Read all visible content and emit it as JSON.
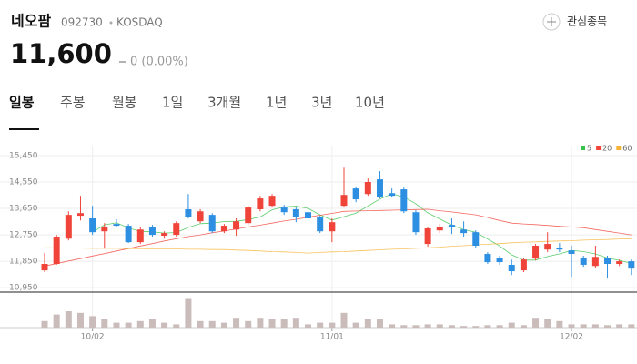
{
  "header": {
    "name": "네오팜",
    "code": "092730",
    "market": "KOSDAQ",
    "price": "11,600",
    "change": "0 (0.00%)",
    "watch": "관심종목"
  },
  "tabs": [
    "일봉",
    "주봉",
    "월봉",
    "1일",
    "3개월",
    "1년",
    "3년",
    "10년"
  ],
  "chart_data": {
    "type": "candlestick",
    "categories": [
      null,
      null,
      null,
      null,
      "10/02",
      null,
      null,
      null,
      null,
      null,
      null,
      null,
      null,
      null,
      null,
      null,
      null,
      null,
      null,
      null,
      null,
      null,
      null,
      null,
      "11/01",
      null,
      null,
      null,
      null,
      null,
      null,
      null,
      null,
      null,
      null,
      null,
      null,
      null,
      null,
      null,
      null,
      null,
      null,
      null,
      "12/02",
      null,
      null,
      null,
      null,
      null
    ],
    "open": [
      11540,
      11760,
      12620,
      13400,
      13310,
      12870,
      13120,
      13060,
      12500,
      13030,
      12720,
      12750,
      13620,
      13210,
      13430,
      12870,
      12930,
      13150,
      13620,
      13740,
      13680,
      13620,
      13520,
      13340,
      12870,
      13740,
      14330,
      14140,
      14640,
      14170,
      14300,
      13520,
      12440,
      12900,
      13090,
      12930,
      12840,
      12100,
      11970,
      11730,
      11540,
      11940,
      12250,
      12310,
      12220,
      11970,
      11690,
      11970,
      11760,
      11850
    ],
    "high": [
      12130,
      12750,
      13550,
      14080,
      13740,
      13150,
      13280,
      13120,
      13030,
      13090,
      12870,
      13210,
      14140,
      13620,
      13490,
      13120,
      13310,
      13740,
      14080,
      14140,
      13770,
      13680,
      13770,
      13400,
      13310,
      15040,
      14390,
      14670,
      14920,
      14330,
      14360,
      13590,
      13030,
      13120,
      13310,
      13210,
      12900,
      12160,
      12040,
      11910,
      11970,
      12440,
      12840,
      12470,
      12380,
      12040,
      12380,
      12040,
      11910,
      11910
    ],
    "low": [
      11480,
      11730,
      12560,
      13240,
      12750,
      12280,
      13000,
      12470,
      12440,
      12690,
      12620,
      12690,
      13310,
      13150,
      12810,
      12810,
      12720,
      13090,
      13550,
      13680,
      13430,
      13180,
      13060,
      12810,
      12500,
      13680,
      13860,
      14080,
      13990,
      14020,
      13490,
      12750,
      12350,
      12810,
      12780,
      12690,
      12310,
      11760,
      11730,
      11380,
      11480,
      11880,
      12160,
      12160,
      11320,
      11660,
      11630,
      11260,
      11690,
      11380
    ],
    "close": [
      11760,
      12690,
      13430,
      13490,
      12840,
      13000,
      13060,
      12500,
      12930,
      12750,
      12810,
      13150,
      13370,
      13550,
      12870,
      13060,
      13210,
      13680,
      13990,
      14080,
      13520,
      13370,
      13310,
      12870,
      13180,
      14110,
      13960,
      14550,
      14050,
      14080,
      13550,
      12840,
      12970,
      13000,
      13030,
      12810,
      12380,
      11820,
      11820,
      11510,
      11910,
      12380,
      12440,
      12250,
      12100,
      11730,
      12000,
      11760,
      11850,
      11600
    ],
    "volume": [
      8,
      16,
      20,
      18,
      14,
      10,
      6,
      6,
      8,
      10,
      6,
      4,
      35,
      8,
      8,
      6,
      12,
      8,
      12,
      10,
      10,
      12,
      4,
      6,
      6,
      18,
      6,
      10,
      10,
      4,
      3,
      3,
      4,
      4,
      3,
      2,
      2,
      3,
      3,
      6,
      3,
      12,
      10,
      8,
      4,
      4,
      4,
      3,
      4,
      4
    ],
    "volume_ylim": [
      0,
      40
    ],
    "up_color": "#f0443a",
    "down_color": "#2d8fe2",
    "volume_color": "#c9bcbb",
    "moving_averages": [
      {
        "name": "5",
        "color": "#35c24a",
        "values": [
          null,
          null,
          null,
          null,
          12840,
          13090,
          13160,
          12980,
          12870,
          12850,
          12810,
          12830,
          13000,
          13130,
          13150,
          13200,
          13210,
          13270,
          13360,
          13600,
          13700,
          13730,
          13650,
          13430,
          13250,
          13370,
          13490,
          13730,
          13970,
          14150,
          14040,
          13810,
          13500,
          13290,
          13080,
          12930,
          12840,
          12610,
          12370,
          12070,
          11890,
          11890,
          12010,
          12100,
          12220,
          12180,
          12100,
          11960,
          11880,
          11780
        ]
      },
      {
        "name": "20",
        "color": "#f0443a",
        "values": [
          11690,
          11770,
          11860,
          11940,
          12030,
          12110,
          12200,
          12280,
          12370,
          12450,
          12540,
          12620,
          12690,
          12750,
          12820,
          12880,
          12950,
          13020,
          13080,
          13150,
          13220,
          13280,
          13350,
          13420,
          13480,
          13550,
          13560,
          13570,
          13580,
          13590,
          13600,
          13610,
          13620,
          13570,
          13530,
          13480,
          13430,
          13340,
          13240,
          13150,
          13120,
          13100,
          13070,
          13040,
          13020,
          12990,
          12930,
          12870,
          12810,
          12750
        ]
      },
      {
        "name": "60",
        "color": "#f5b335",
        "values": [
          12310,
          12310,
          12300,
          12300,
          12290,
          12290,
          12290,
          12280,
          12280,
          12270,
          12270,
          12270,
          12260,
          12260,
          12250,
          12250,
          12230,
          12220,
          12200,
          12180,
          12170,
          12150,
          12130,
          12150,
          12170,
          12180,
          12200,
          12220,
          12240,
          12260,
          12270,
          12290,
          12310,
          12330,
          12360,
          12380,
          12410,
          12430,
          12450,
          12480,
          12500,
          12510,
          12530,
          12540,
          12550,
          12570,
          12580,
          12590,
          12610,
          12620
        ]
      }
    ],
    "ylim": [
      10830,
      15790
    ],
    "yticks": [
      {
        "value": 10950,
        "label": "10,950"
      },
      {
        "value": 11850,
        "label": "11,850"
      },
      {
        "value": 12750,
        "label": "12,750"
      },
      {
        "value": 13650,
        "label": "13,650"
      },
      {
        "value": 14550,
        "label": "14,550"
      },
      {
        "value": 15450,
        "label": "15,450"
      }
    ],
    "grid": true
  }
}
